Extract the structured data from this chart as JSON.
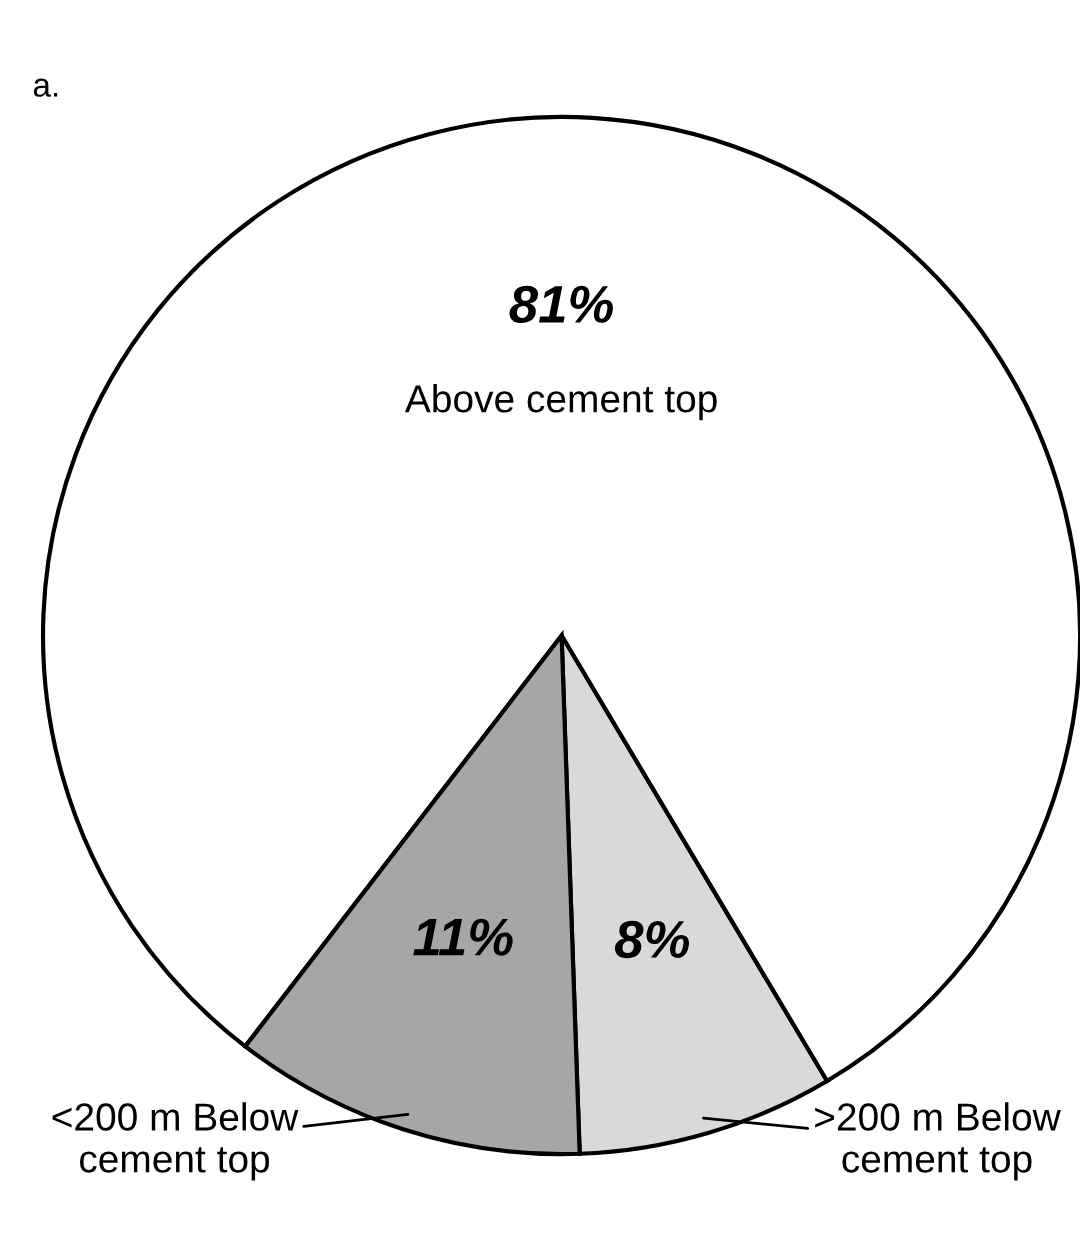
{
  "chart_data": {
    "type": "pie",
    "title": "a.",
    "categories": [
      ">200 m Below\ncement top",
      "Above cement top",
      "<200 m Below\ncement top"
    ],
    "values": [
      8,
      81,
      11
    ],
    "colors": [
      "#d9d9d9",
      "#ffffff",
      "#a6a6a6"
    ],
    "value_labels": [
      "8%",
      "81%",
      "11%"
    ]
  }
}
